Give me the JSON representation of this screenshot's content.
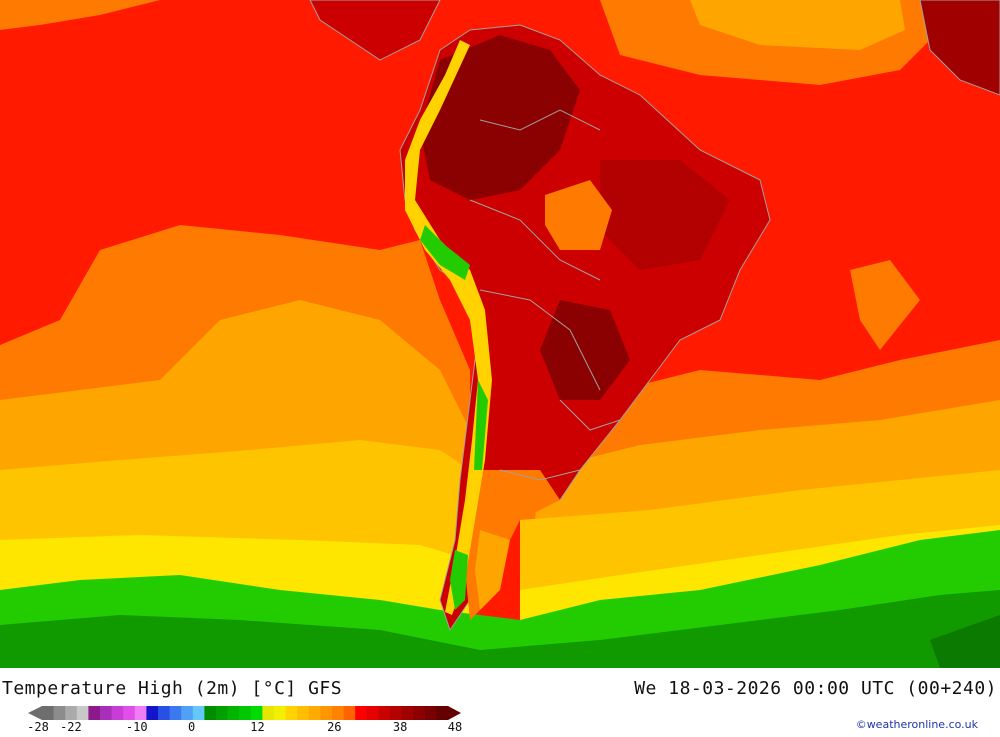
{
  "map": {
    "title": "Temperature High (2m) [°C] GFS",
    "datetime": "We 18-03-2026 00:00 UTC (00+240)",
    "credit": "©weatheronline.co.uk",
    "colors": {
      "ocean_warm": "#ff1a00",
      "ocean_orange": "#ff7a00",
      "ocean_amber": "#ffa500",
      "ocean_gold": "#ffc400",
      "ocean_yellow": "#ffe600",
      "ocean_green": "#22cc00",
      "ocean_darkgreen": "#119900",
      "land_hot": "#b30000",
      "land_hottest": "#8b0000",
      "borders": "#a0a0a0"
    }
  },
  "legend": {
    "colors": [
      "#6e6e6e",
      "#8c8c8c",
      "#aaaaaa",
      "#c8c8c8",
      "#8c1a8c",
      "#a830b8",
      "#c83cd8",
      "#e050e8",
      "#f07cf8",
      "#1414c8",
      "#2850e6",
      "#3c78f0",
      "#50a0f8",
      "#64c8ff",
      "#008c00",
      "#00a000",
      "#00b400",
      "#00c800",
      "#00dc00",
      "#e6e600",
      "#f0f000",
      "#ffd200",
      "#ffbe00",
      "#ffaa00",
      "#ff9600",
      "#ff8200",
      "#ff6400",
      "#ff0000",
      "#e60000",
      "#cd0000",
      "#b40000",
      "#a00000",
      "#8c0000",
      "#780000",
      "#640000"
    ],
    "labels": [
      {
        "value": -28,
        "text": "-28"
      },
      {
        "value": -22,
        "text": "-22"
      },
      {
        "value": -10,
        "text": "-10"
      },
      {
        "value": 0,
        "text": "0"
      },
      {
        "value": 12,
        "text": "12"
      },
      {
        "value": 26,
        "text": "26"
      },
      {
        "value": 38,
        "text": "38"
      },
      {
        "value": 48,
        "text": "48"
      }
    ]
  }
}
